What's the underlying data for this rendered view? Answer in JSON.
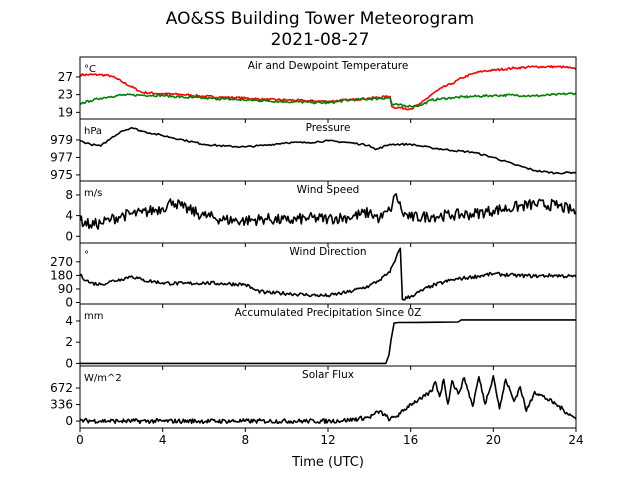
{
  "figure": {
    "title": "AO&SS Building Tower Meteorogram",
    "date": "2021-08-27",
    "xlabel": "Time (UTC)",
    "xlim": [
      0,
      24
    ],
    "xticks": [
      0,
      4,
      8,
      12,
      16,
      20,
      24
    ]
  },
  "chart_data": [
    {
      "type": "line",
      "title": "Air and Dewpoint Temperature",
      "unit": "°C",
      "ylim": [
        17.5,
        31.5
      ],
      "yticks": [
        19,
        23,
        27
      ],
      "series": [
        {
          "name": "",
          "color": "#ff0000",
          "x": [
            0,
            1,
            1.5,
            2,
            3,
            4,
            5,
            6,
            7,
            8,
            9,
            10,
            11,
            12,
            13,
            14,
            15,
            15.1,
            16,
            16.5,
            17,
            17.5,
            18,
            18.5,
            19,
            19.5,
            20,
            21,
            22,
            23,
            23.5,
            24
          ],
          "y": [
            27.5,
            27.5,
            27.2,
            26.0,
            23.5,
            23.2,
            23.0,
            22.6,
            22.4,
            22.2,
            21.9,
            21.8,
            21.6,
            21.5,
            21.8,
            22.2,
            22.6,
            20.2,
            19.8,
            21.0,
            23.0,
            24.5,
            25.5,
            26.8,
            27.7,
            28.3,
            28.5,
            29.0,
            29.3,
            29.3,
            29.2,
            28.7
          ]
        },
        {
          "name": "",
          "color": "#008000",
          "x": [
            0,
            0.5,
            1,
            1.5,
            2,
            3,
            4,
            5,
            6,
            7,
            8,
            9,
            10,
            11,
            12,
            13,
            14,
            15,
            15.1,
            16,
            16.5,
            17,
            18,
            19,
            20,
            21,
            22,
            23,
            24
          ],
          "y": [
            21.0,
            21.6,
            22.2,
            22.6,
            22.9,
            22.9,
            22.8,
            22.4,
            22.2,
            22.0,
            21.8,
            21.6,
            21.4,
            21.3,
            21.1,
            21.8,
            22.0,
            22.3,
            20.8,
            20.4,
            20.6,
            21.8,
            22.3,
            22.6,
            22.8,
            22.9,
            22.7,
            23.0,
            23.3
          ]
        }
      ]
    },
    {
      "type": "line",
      "title": "Pressure",
      "unit": "hPa",
      "ylim": [
        974.3,
        981.4
      ],
      "yticks": [
        975,
        977,
        979
      ],
      "series": [
        {
          "name": "",
          "color": "#000000",
          "x": [
            0,
            0.5,
            1,
            1.5,
            2,
            2.5,
            3,
            4,
            5,
            6,
            7,
            8,
            9,
            10,
            11,
            12,
            13,
            14,
            14.3,
            15,
            16,
            17,
            18,
            19,
            20,
            21,
            22,
            23,
            24
          ],
          "y": [
            978.9,
            978.5,
            978.3,
            979.2,
            980.0,
            980.4,
            980.0,
            979.5,
            979.0,
            978.5,
            978.3,
            978.2,
            978.4,
            978.7,
            978.7,
            978.9,
            978.7,
            978.4,
            977.9,
            978.5,
            978.5,
            978.1,
            977.8,
            977.6,
            977.0,
            976.2,
            975.5,
            975.2,
            975.3
          ]
        }
      ]
    },
    {
      "type": "line",
      "title": "Wind Speed",
      "unit": "m/s",
      "ylim": [
        -1.3,
        10.7
      ],
      "yticks": [
        0,
        4,
        8
      ],
      "series": [
        {
          "name": "",
          "color": "#000000",
          "x": [
            0,
            0.5,
            1,
            1.5,
            2,
            3,
            4,
            4.5,
            5,
            6,
            7,
            8,
            9,
            10,
            11,
            12,
            13,
            14,
            14.5,
            15,
            15.3,
            15.6,
            16,
            17,
            18,
            19,
            20,
            21,
            22,
            23,
            24
          ],
          "y": [
            3.0,
            2.2,
            2.5,
            3.3,
            4.0,
            4.5,
            5.5,
            6.8,
            5.5,
            4.0,
            3.2,
            3.0,
            3.4,
            3.0,
            3.5,
            3.4,
            3.7,
            4.6,
            3.4,
            5.0,
            8.2,
            4.5,
            3.6,
            3.9,
            4.1,
            4.3,
            5.0,
            5.6,
            6.2,
            6.0,
            4.8
          ]
        }
      ]
    },
    {
      "type": "line",
      "title": "Wind Direction",
      "unit": "°",
      "ylim": [
        -10,
        395
      ],
      "yticks": [
        0,
        90,
        180,
        270
      ],
      "series": [
        {
          "name": "",
          "color": "#000000",
          "x": [
            0,
            0.5,
            1,
            1.5,
            2,
            2.5,
            3,
            4,
            5,
            6,
            7,
            8,
            8.5,
            9,
            10,
            11,
            12,
            13,
            14,
            14.5,
            15,
            15.1,
            15.3,
            15.5,
            15.6,
            16,
            17,
            18,
            19,
            20,
            21,
            22,
            23,
            24
          ],
          "y": [
            180,
            130,
            120,
            140,
            155,
            175,
            150,
            130,
            125,
            130,
            125,
            120,
            80,
            65,
            60,
            50,
            45,
            70,
            110,
            150,
            200,
            240,
            300,
            360,
            20,
            40,
            110,
            150,
            170,
            190,
            180,
            175,
            180,
            170
          ]
        }
      ]
    },
    {
      "type": "line",
      "title": "Accumulated Precipitation Since 0Z",
      "unit": "mm",
      "ylim": [
        -0.25,
        5.6
      ],
      "yticks": [
        0,
        2,
        4
      ],
      "series": [
        {
          "name": "",
          "color": "#000000",
          "x": [
            0,
            14.8,
            14.95,
            15.05,
            15.2,
            15.4,
            18.3,
            18.45,
            24
          ],
          "y": [
            0,
            0,
            0.8,
            2.2,
            3.8,
            3.85,
            3.9,
            4.1,
            4.1
          ]
        }
      ]
    },
    {
      "type": "line",
      "title": "Solar Flux",
      "unit": "W/m^2",
      "ylim": [
        -140,
        1120
      ],
      "yticks": [
        0,
        336,
        672
      ],
      "series": [
        {
          "name": "",
          "color": "#000000",
          "x": [
            0,
            2,
            4,
            8,
            12,
            13,
            14,
            14.5,
            15,
            15.5,
            16,
            16.5,
            17,
            17.2,
            17.4,
            17.6,
            17.8,
            18,
            18.3,
            18.6,
            19,
            19.3,
            19.6,
            20,
            20.3,
            20.6,
            21,
            21.3,
            21.6,
            22,
            23,
            24
          ],
          "y": [
            10,
            0,
            0,
            0,
            0,
            20,
            80,
            200,
            30,
            150,
            350,
            450,
            600,
            800,
            500,
            850,
            350,
            820,
            550,
            880,
            300,
            900,
            350,
            920,
            250,
            850,
            400,
            700,
            200,
            600,
            350,
            40
          ]
        }
      ]
    }
  ]
}
